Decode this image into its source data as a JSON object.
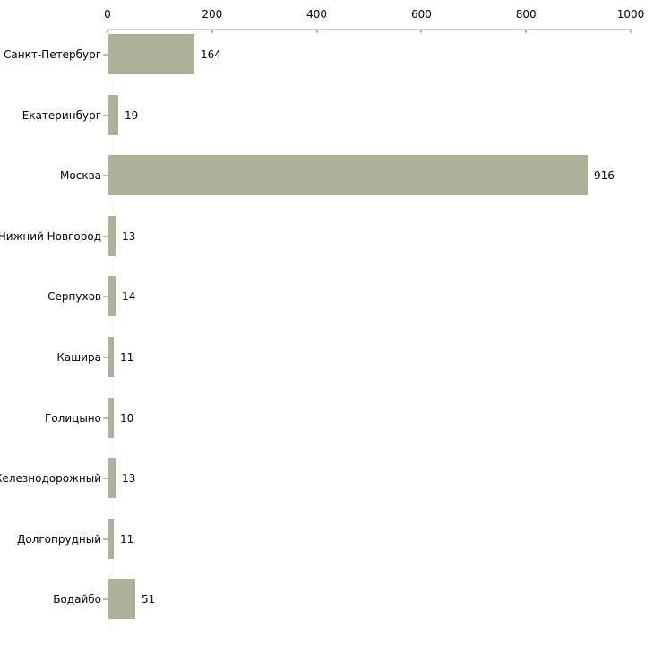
{
  "chart_data": {
    "type": "bar",
    "orientation": "horizontal",
    "title": "",
    "xlabel": "",
    "ylabel": "",
    "categories": [
      "Санкт-Петербург",
      "Екатеринбург",
      "Москва",
      "Нижний Новгород",
      "Серпухов",
      "Кашира",
      "Голицыно",
      "Железнодорожный",
      "Долгопрудный",
      "Бодайбо"
    ],
    "values": [
      164,
      19,
      916,
      13,
      14,
      11,
      10,
      13,
      11,
      51
    ],
    "xlim": [
      0,
      1000
    ],
    "x_ticks": [
      0,
      200,
      400,
      600,
      800,
      1000
    ],
    "x_axis_position": "top",
    "grid": false,
    "legend": false,
    "value_labels_shown": true,
    "colors": {
      "bar": "#ACB299",
      "axis_line": "#CFCFC7",
      "tick_mark": "#C2C18A",
      "text": "#000000",
      "background": "#FFFFFF"
    }
  }
}
